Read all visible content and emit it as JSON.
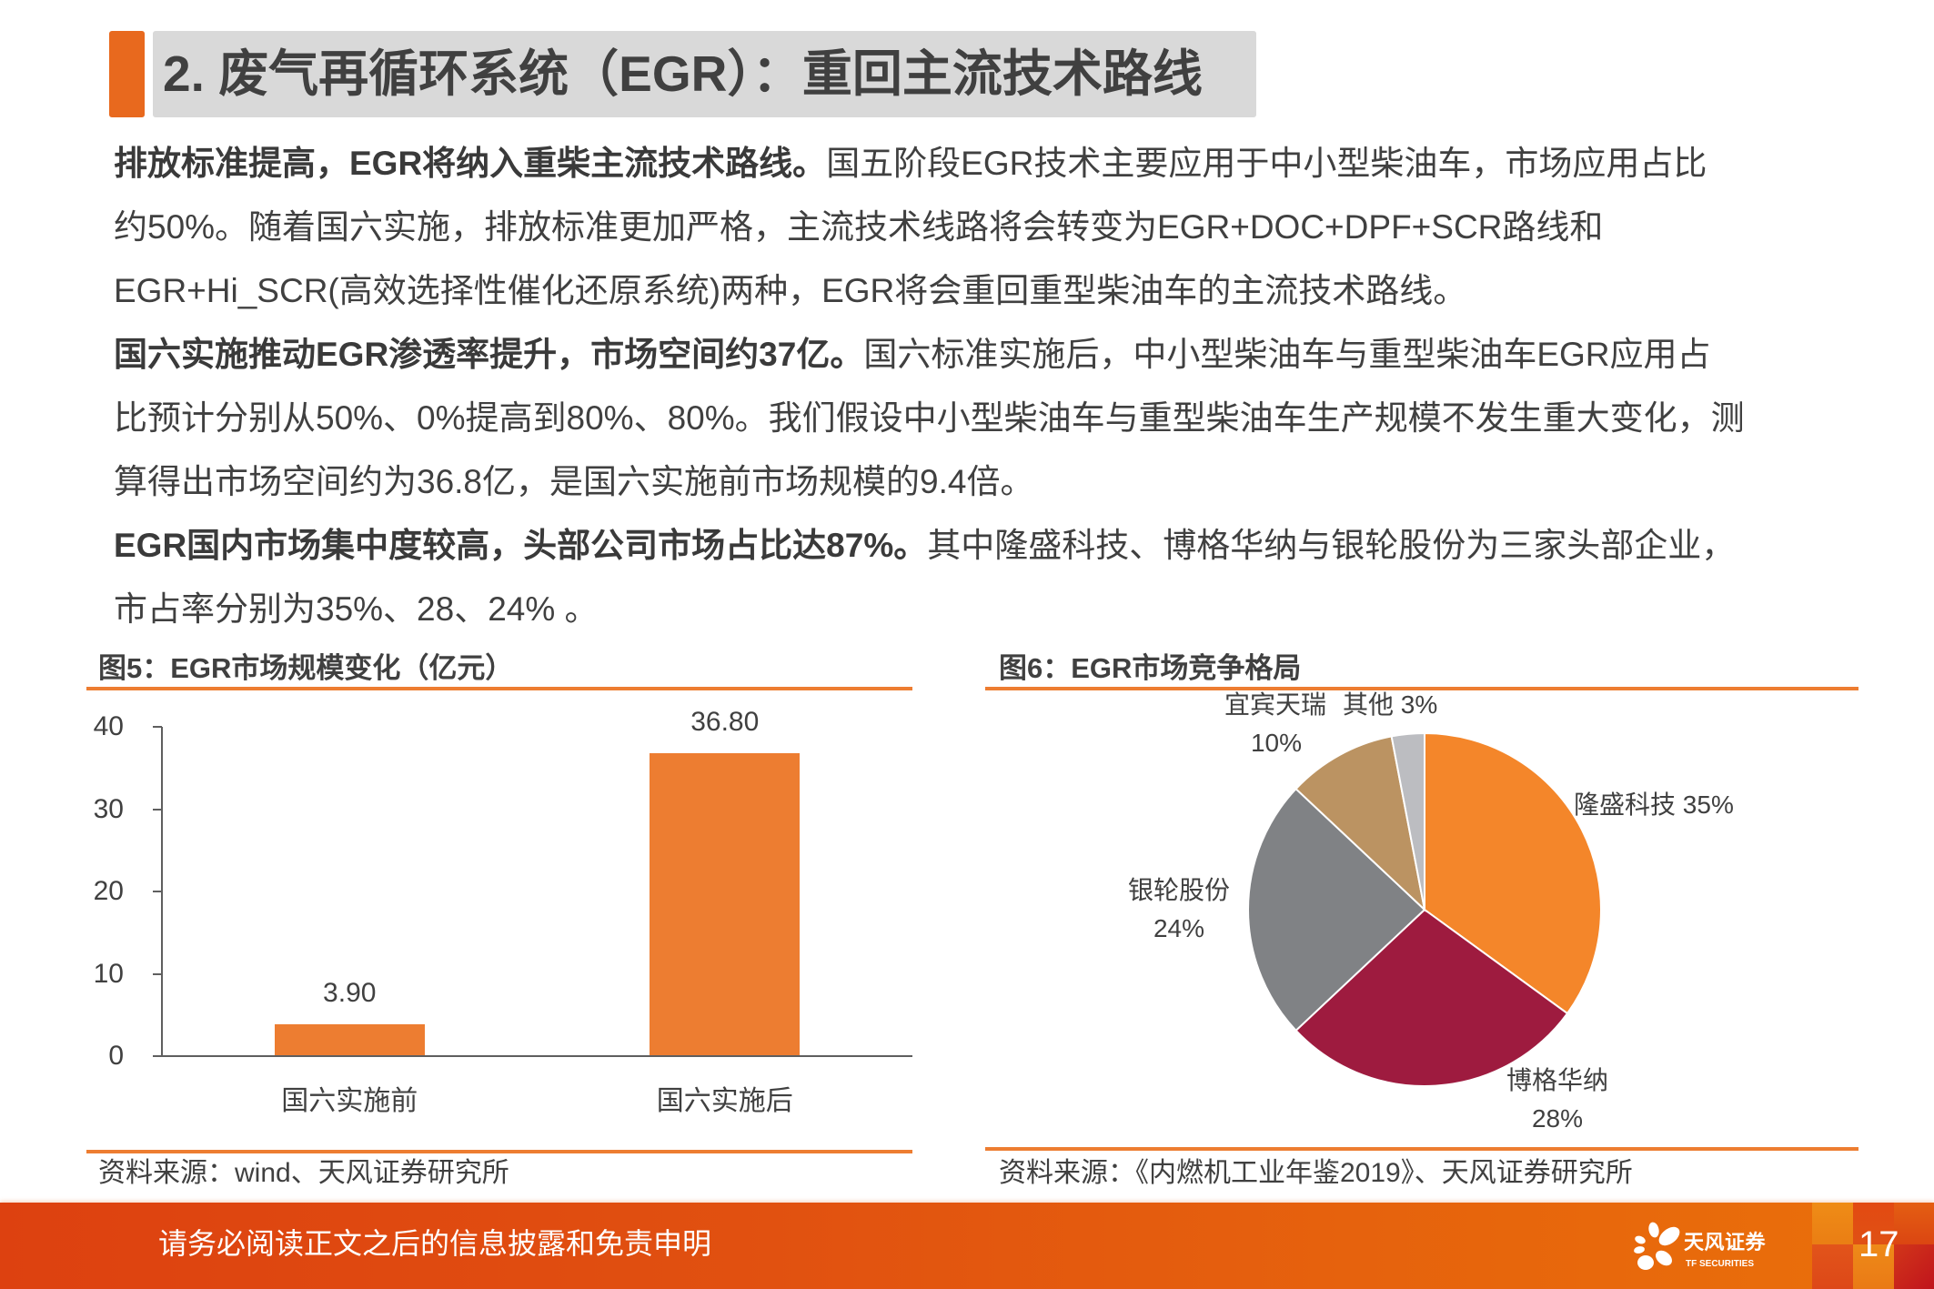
{
  "header": {
    "title": "2. 废气再循环系统（EGR）：重回主流技术路线"
  },
  "body": {
    "paragraphs": [
      {
        "lines": [
          {
            "bold": "排放标准提高，EGR将纳入重柴主流技术路线。",
            "text": "国五阶段EGR技术主要应用于中小型柴油车，市场应用占比"
          },
          {
            "text": "约50%。随着国六实施，排放标准更加严格，主流技术线路将会转变为EGR+DOC+DPF+SCR路线和"
          },
          {
            "text": "EGR+Hi_SCR(高效选择性催化还原系统)两种，EGR将会重回重型柴油车的主流技术路线。"
          }
        ]
      },
      {
        "lines": [
          {
            "bold": "国六实施推动EGR渗透率提升，市场空间约37亿。",
            "text": "国六标准实施后，中小型柴油车与重型柴油车EGR应用占"
          },
          {
            "text": "比预计分别从50%、0%提高到80%、80%。我们假设中小型柴油车与重型柴油车生产规模不发生重大变化，测"
          },
          {
            "text": "算得出市场空间约为36.8亿，是国六实施前市场规模的9.4倍。"
          }
        ]
      },
      {
        "lines": [
          {
            "bold": "EGR国内市场集中度较高，头部公司市场占比达87%。",
            "text": "其中隆盛科技、博格华纳与银轮股份为三家头部企业，"
          },
          {
            "text": "市占率分别为35%、28、24% 。"
          }
        ]
      }
    ]
  },
  "chart_data": [
    {
      "type": "bar",
      "title": "图5：EGR市场规模变化（亿元）",
      "categories": [
        "国六实施前",
        "国六实施后"
      ],
      "values": [
        3.9,
        36.8
      ],
      "data_labels": [
        "3.90",
        "36.80"
      ],
      "xlabel": "",
      "ylabel": "",
      "ylim": [
        0,
        40
      ],
      "yticks": [
        40,
        30,
        20,
        10,
        0
      ],
      "grid": false,
      "legend": null,
      "color": "#ED7D31",
      "source": "资料来源：wind、天风证券研究所"
    },
    {
      "type": "pie",
      "title": "图6：EGR市场竞争格局",
      "labels": [
        "隆盛科技",
        "博格华纳",
        "银轮股份",
        "宜宾天瑞",
        "其他"
      ],
      "values": [
        35,
        28,
        24,
        10,
        3
      ],
      "display_values": [
        "35%",
        "28%",
        "24%",
        "10%",
        "3%"
      ],
      "colors": [
        "#F4862A",
        "#9E1B3F",
        "#808285",
        "#BB9362",
        "#BCBDC1"
      ],
      "start_angle_deg": 0,
      "direction": "clockwise",
      "legend": null,
      "source": "资料来源：《内燃机工业年鉴2019》、天风证券研究所"
    }
  ],
  "footer": {
    "disclaimer": "请务必阅读正文之后的信息披露和免责申明",
    "logo_cn": "天风证券",
    "logo_en": "TF SECURITIES",
    "page_number": "17"
  },
  "theme": {
    "accent": "#E8691E",
    "title_bg": "#D9D9D9",
    "text": "#404040",
    "rule": "#ED7D31",
    "footer_left": "#DD4110",
    "footer_right": "#EA700A"
  }
}
